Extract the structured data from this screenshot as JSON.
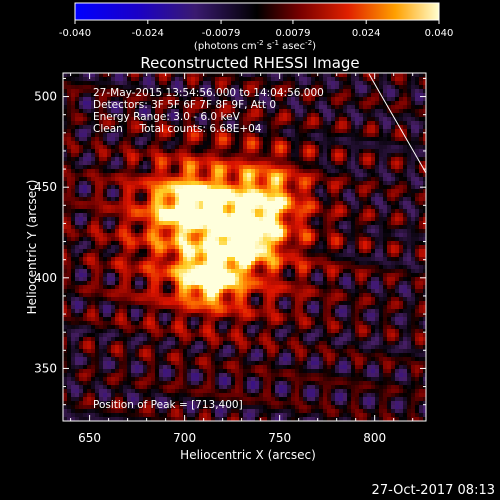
{
  "colorbar": {
    "ticks": [
      "-0.040",
      "-0.024",
      "-0.0079",
      "0.0079",
      "0.024",
      "0.040"
    ],
    "range": [
      -0.04,
      0.04
    ],
    "units_line1": "(photons cm",
    "units_line2": " s",
    "units_line3": " asec",
    "units_line4": ")",
    "units_exp1": "-2",
    "units_exp2": "-1",
    "units_exp3": "-2"
  },
  "chart_data": {
    "type": "heatmap",
    "title": "Reconstructed RHESSI Image",
    "xlabel": "Heliocentric X (arcsec)",
    "ylabel": "Heliocentric Y (arcsec)",
    "xlim": [
      636,
      827
    ],
    "ylim": [
      321,
      513
    ],
    "xticks": [
      "650",
      "700",
      "750",
      "800"
    ],
    "yticks": [
      "350",
      "400",
      "450",
      "500"
    ],
    "xtick_values": [
      650,
      700,
      750,
      800
    ],
    "ytick_values": [
      350,
      400,
      450,
      500
    ],
    "peak": [
      713,
      400
    ],
    "sources": [
      {
        "x": 713,
        "y": 400,
        "amp": 0.04,
        "sx": 10,
        "sy": 9
      },
      {
        "x": 733,
        "y": 423,
        "amp": 0.034,
        "sx": 10,
        "sy": 10
      },
      {
        "x": 704,
        "y": 440,
        "amp": 0.033,
        "sx": 14,
        "sy": 11
      },
      {
        "x": 744,
        "y": 445,
        "amp": 0.022,
        "sx": 12,
        "sy": 12
      },
      {
        "x": 716,
        "y": 425,
        "amp": 0.026,
        "sx": 32,
        "sy": 30
      }
    ],
    "annotations": [
      "27-May-2015 13:54:56.000 to 14:04:56.000",
      "Detectors: 3F 5F 6F 7F 8F 9F, Att 0",
      "Energy Range: 3.0 - 6.0 keV",
      "Clean     Total counts: 6.68E+04",
      "Position of Peak = [713,400]"
    ]
  },
  "footer": {
    "timestamp": "27-Oct-2017 08:13"
  }
}
